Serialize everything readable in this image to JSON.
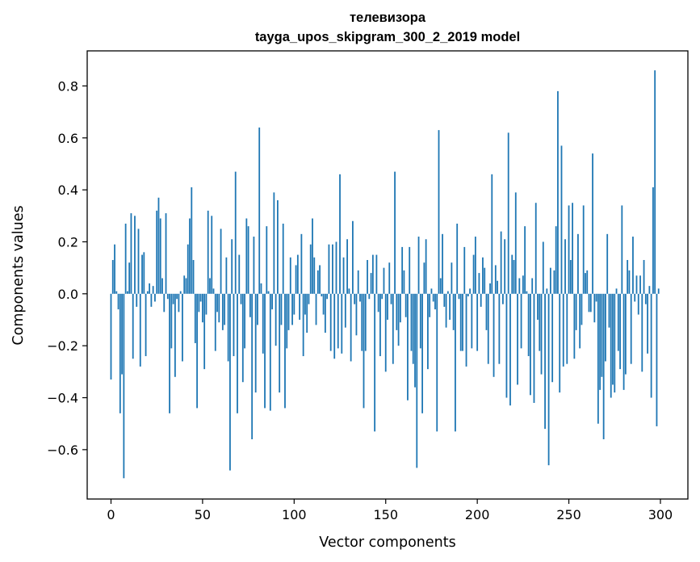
{
  "chart_data": {
    "type": "bar",
    "title": "телевизора",
    "subtitle": "tayga_upos_skipgram_300_2_2019 model",
    "xlabel": "Vector components",
    "ylabel": "Components values",
    "xlim": [
      -13,
      315
    ],
    "ylim": [
      -0.79,
      0.935
    ],
    "xticks": [
      0,
      50,
      100,
      150,
      200,
      250,
      300
    ],
    "yticks": [
      -0.6,
      -0.4,
      -0.2,
      0.0,
      0.2,
      0.4,
      0.6,
      0.8
    ],
    "ytick_labels": [
      "−0.6",
      "−0.4",
      "−0.2",
      "0.0",
      "0.2",
      "0.4",
      "0.6",
      "0.8"
    ],
    "bar_color": "#1f77b4",
    "values": [
      -0.33,
      0.13,
      0.19,
      0.01,
      -0.06,
      -0.46,
      -0.31,
      -0.71,
      0.27,
      0.01,
      0.12,
      0.31,
      -0.25,
      0.3,
      -0.05,
      0.25,
      -0.28,
      0.15,
      0.16,
      -0.24,
      0.01,
      0.04,
      -0.05,
      0.03,
      -0.03,
      0.32,
      0.37,
      0.29,
      0.06,
      -0.07,
      0.31,
      -0.02,
      -0.46,
      -0.21,
      -0.04,
      -0.32,
      -0.02,
      -0.07,
      0.01,
      -0.26,
      0.07,
      0.06,
      0.19,
      0.29,
      0.41,
      0.13,
      -0.19,
      -0.44,
      -0.07,
      -0.03,
      -0.11,
      -0.29,
      -0.08,
      0.32,
      0.06,
      0.3,
      0.02,
      -0.22,
      -0.07,
      -0.11,
      0.25,
      -0.14,
      -0.12,
      0.14,
      -0.26,
      -0.68,
      0.21,
      -0.24,
      0.47,
      -0.46,
      0.15,
      -0.04,
      -0.34,
      -0.21,
      0.29,
      0.26,
      -0.09,
      -0.56,
      0.22,
      -0.38,
      -0.12,
      0.64,
      0.04,
      -0.23,
      -0.44,
      0.26,
      0.01,
      -0.45,
      -0.06,
      0.39,
      -0.2,
      0.36,
      -0.38,
      -0.12,
      0.27,
      -0.44,
      -0.21,
      -0.14,
      0.14,
      -0.12,
      -0.08,
      0.11,
      0.15,
      -0.1,
      0.23,
      -0.24,
      -0.08,
      -0.15,
      -0.04,
      0.19,
      0.29,
      0.14,
      -0.12,
      0.09,
      0.11,
      -0.01,
      -0.08,
      -0.15,
      -0.02,
      0.19,
      -0.22,
      0.19,
      -0.25,
      0.2,
      -0.21,
      0.46,
      -0.23,
      0.14,
      -0.13,
      0.21,
      0.02,
      -0.26,
      0.28,
      -0.04,
      -0.16,
      0.09,
      -0.03,
      -0.22,
      -0.44,
      -0.22,
      0.13,
      -0.02,
      0.08,
      0.15,
      -0.53,
      0.15,
      -0.07,
      -0.24,
      -0.02,
      0.1,
      -0.3,
      -0.1,
      0.12,
      -0.04,
      -0.27,
      0.47,
      -0.14,
      -0.2,
      -0.11,
      0.18,
      0.09,
      -0.09,
      -0.41,
      0.18,
      -0.22,
      -0.27,
      -0.36,
      -0.67,
      0.22,
      -0.21,
      -0.46,
      0.12,
      0.21,
      -0.29,
      -0.09,
      0.02,
      -0.03,
      -0.06,
      -0.53,
      0.63,
      0.06,
      0.23,
      -0.05,
      -0.13,
      0.01,
      -0.1,
      0.12,
      -0.14,
      -0.53,
      0.27,
      -0.02,
      -0.22,
      -0.22,
      0.18,
      -0.28,
      -0.01,
      0.02,
      -0.21,
      0.15,
      0.22,
      -0.22,
      0.08,
      -0.05,
      0.14,
      0.1,
      -0.14,
      -0.27,
      0.04,
      0.46,
      -0.32,
      0.11,
      0.05,
      -0.27,
      0.24,
      -0.04,
      0.21,
      -0.4,
      0.62,
      -0.43,
      0.15,
      0.13,
      0.39,
      -0.35,
      0.06,
      -0.21,
      0.07,
      0.26,
      0.01,
      -0.24,
      -0.39,
      0.06,
      -0.42,
      0.35,
      -0.1,
      -0.22,
      -0.31,
      0.2,
      -0.52,
      0.02,
      -0.66,
      0.1,
      -0.34,
      0.09,
      0.26,
      0.78,
      -0.38,
      0.57,
      -0.28,
      0.21,
      -0.27,
      0.34,
      0.13,
      0.35,
      -0.25,
      -0.14,
      0.23,
      -0.21,
      -0.12,
      0.34,
      0.08,
      0.09,
      -0.07,
      -0.07,
      0.54,
      -0.11,
      -0.03,
      -0.5,
      -0.37,
      -0.32,
      -0.56,
      -0.26,
      0.23,
      -0.13,
      -0.4,
      -0.35,
      -0.38,
      0.02,
      -0.22,
      -0.29,
      0.34,
      -0.37,
      -0.31,
      0.13,
      0.09,
      -0.27,
      0.22,
      -0.03,
      0.07,
      -0.08,
      0.07,
      -0.3,
      0.13,
      -0.04,
      -0.23,
      0.03,
      -0.4,
      0.41,
      0.86,
      -0.51,
      0.02
    ]
  }
}
